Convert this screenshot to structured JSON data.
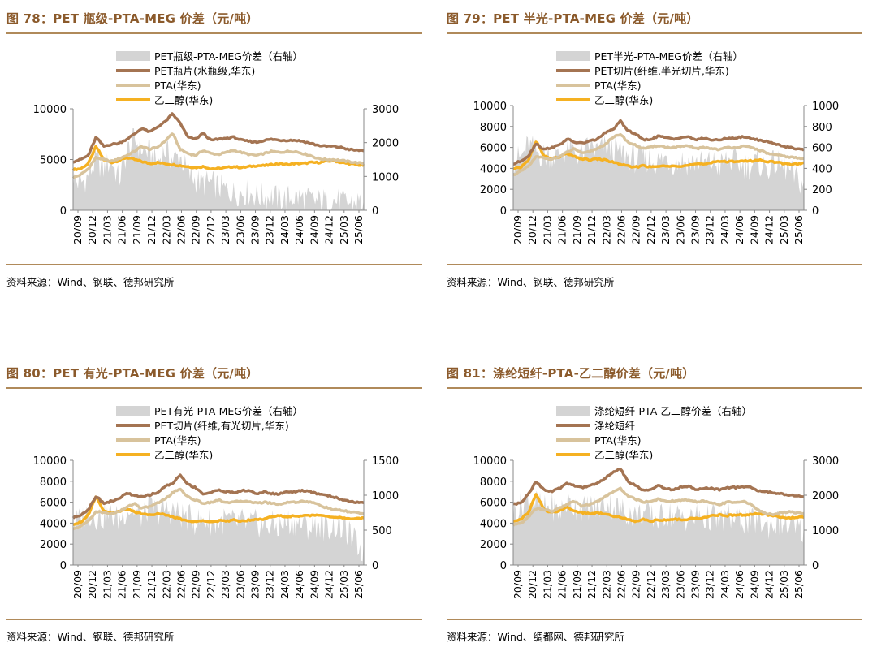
{
  "panels": [
    {
      "title": "图 78：PET 瓶级-PTA-MEG 价差（元/吨）",
      "source": "资料来源：Wind、钢联、德邦研究所",
      "chart_data": {
        "type": "area+line",
        "legend": [
          "PET瓶级-PTA-MEG价差（右轴）",
          "PET瓶片(水瓶级,华东)",
          "PTA(华东)",
          "乙二醇(华东)"
        ],
        "left_axis": {
          "min": 0,
          "max": 10000,
          "ticks": [
            0,
            5000,
            10000
          ]
        },
        "right_axis": {
          "min": 0,
          "max": 3000,
          "ticks": [
            0,
            1000,
            2000,
            3000
          ]
        },
        "x_labels": [
          "20/09",
          "20/12",
          "21/03",
          "21/06",
          "21/09",
          "21/12",
          "22/03",
          "22/06",
          "22/09",
          "22/12",
          "23/03",
          "23/06",
          "23/09",
          "23/12",
          "24/03",
          "24/06",
          "24/09",
          "24/12",
          "25/03",
          "25/06"
        ],
        "series": {
          "spread_right_axis": [
            900,
            800,
            1000,
            1500,
            1200,
            1500,
            900,
            1700,
            2100,
            1800,
            1700,
            1400,
            1800,
            1500,
            1600,
            1100,
            900,
            800,
            800,
            700,
            600,
            500,
            550,
            500,
            450,
            400,
            400,
            350,
            350,
            400,
            350,
            300,
            250,
            300,
            300,
            250,
            200,
            250,
            250
          ],
          "main": [
            4800,
            5000,
            5400,
            7200,
            6300,
            6500,
            6600,
            7000,
            7500,
            8100,
            7700,
            8200,
            8700,
            9500,
            8600,
            7200,
            7000,
            7600,
            6900,
            7000,
            7100,
            7200,
            6900,
            6800,
            6700,
            6900,
            7000,
            6900,
            6900,
            6900,
            6800,
            6600,
            6400,
            6300,
            6300,
            6200,
            6000,
            5900,
            5900
          ],
          "pta": [
            3200,
            3500,
            4100,
            5200,
            5000,
            4800,
            5100,
            5400,
            5800,
            6300,
            6000,
            6200,
            6800,
            7600,
            6000,
            5600,
            5400,
            5900,
            5600,
            5500,
            5700,
            5900,
            5700,
            5500,
            5400,
            5600,
            5800,
            5700,
            5800,
            5800,
            5600,
            5400,
            5100,
            5000,
            5000,
            4900,
            4800,
            4700,
            4600
          ],
          "meg": [
            4000,
            4100,
            4600,
            6300,
            5000,
            4700,
            4900,
            5200,
            5000,
            4800,
            4600,
            4700,
            4600,
            4500,
            4400,
            4300,
            4200,
            4300,
            4100,
            4100,
            4200,
            4300,
            4200,
            4300,
            4400,
            4400,
            4500,
            4600,
            4500,
            4600,
            4600,
            4700,
            4700,
            4800,
            4900,
            4700,
            4600,
            4500,
            4400
          ]
        }
      }
    },
    {
      "title": "图 79：PET 半光-PTA-MEG 价差（元/吨）",
      "source": "资料来源：Wind、钢联、德邦研究所",
      "chart_data": {
        "type": "area+line",
        "legend": [
          "PET半光-PTA-MEG价差（右轴）",
          "PET切片(纤维,半光切片,华东)",
          "PTA(华东)",
          "乙二醇(华东)"
        ],
        "left_axis": {
          "min": 0,
          "max": 10000,
          "ticks": [
            0,
            2000,
            4000,
            6000,
            8000,
            10000
          ]
        },
        "right_axis": {
          "min": 0,
          "max": 1000,
          "ticks": [
            0,
            200,
            400,
            600,
            800,
            1000
          ]
        },
        "x_labels": [
          "20/09",
          "20/12",
          "21/03",
          "21/06",
          "21/09",
          "21/12",
          "22/03",
          "22/06",
          "22/09",
          "22/12",
          "23/03",
          "23/06",
          "23/09",
          "23/12",
          "24/03",
          "24/06",
          "24/09",
          "24/12",
          "25/03",
          "25/06"
        ],
        "series": {
          "spread_right_axis": [
            480,
            500,
            620,
            560,
            520,
            540,
            500,
            580,
            560,
            520,
            620,
            560,
            600,
            580,
            550,
            520,
            480,
            500,
            480,
            460,
            500,
            460,
            480,
            450,
            470,
            440,
            460,
            420,
            480,
            460,
            440,
            420,
            460,
            400,
            440,
            430,
            380,
            300,
            250
          ],
          "main": [
            4400,
            4700,
            5200,
            6400,
            5800,
            6000,
            6200,
            6800,
            6500,
            6400,
            6600,
            6800,
            7400,
            7700,
            8500,
            7600,
            7300,
            6700,
            6800,
            7100,
            6900,
            6800,
            7000,
            7000,
            6700,
            6900,
            6700,
            6700,
            6900,
            6900,
            7000,
            6900,
            6700,
            6600,
            6400,
            6200,
            6000,
            5900,
            5800
          ],
          "pta": [
            3400,
            3700,
            4200,
            5100,
            5000,
            4900,
            5100,
            5500,
            5900,
            5400,
            5600,
            5900,
            6300,
            6900,
            7300,
            6500,
            6200,
            5900,
            6000,
            6200,
            6000,
            6000,
            6100,
            6100,
            5900,
            6000,
            5900,
            5800,
            6000,
            6000,
            6100,
            6000,
            5800,
            5500,
            5300,
            5200,
            5100,
            5000,
            4900
          ],
          "meg": [
            3900,
            4100,
            4800,
            6600,
            5200,
            4900,
            5100,
            5400,
            5100,
            4900,
            4800,
            4900,
            4800,
            4600,
            4400,
            4200,
            4100,
            4300,
            4100,
            4200,
            4200,
            4300,
            4200,
            4300,
            4400,
            4400,
            4600,
            4700,
            4600,
            4700,
            4700,
            4700,
            4800,
            4700,
            4600,
            4500,
            4400,
            4400,
            4500
          ]
        }
      }
    },
    {
      "title": "图 80：PET 有光-PTA-MEG 价差（元/吨）",
      "source": "资料来源：Wind、钢联、德邦研究所",
      "chart_data": {
        "type": "area+line",
        "legend": [
          "PET有光-PTA-MEG价差（右轴）",
          "PET切片(纤维,有光切片,华东)",
          "PTA(华东)",
          "乙二醇(华东)"
        ],
        "left_axis": {
          "min": 0,
          "max": 10000,
          "ticks": [
            0,
            2000,
            4000,
            6000,
            8000,
            10000
          ]
        },
        "right_axis": {
          "min": 0,
          "max": 1500,
          "ticks": [
            0,
            500,
            1000,
            1500
          ]
        },
        "x_labels": [
          "20/09",
          "20/12",
          "21/03",
          "21/06",
          "21/09",
          "21/12",
          "22/03",
          "22/06",
          "22/09",
          "22/12",
          "23/03",
          "23/06",
          "23/09",
          "23/12",
          "24/03",
          "24/06",
          "24/09",
          "24/12",
          "25/03",
          "25/06"
        ],
        "series": {
          "spread_right_axis": [
            600,
            650,
            750,
            700,
            680,
            720,
            650,
            800,
            780,
            700,
            850,
            750,
            800,
            780,
            720,
            680,
            620,
            650,
            620,
            600,
            650,
            600,
            620,
            580,
            600,
            560,
            580,
            540,
            620,
            600,
            580,
            540,
            600,
            520,
            560,
            540,
            450,
            300,
            200
          ],
          "main": [
            4500,
            4800,
            5300,
            6600,
            5900,
            6100,
            6300,
            6900,
            6600,
            6500,
            6700,
            6900,
            7500,
            7800,
            8600,
            7700,
            7400,
            6800,
            6900,
            7200,
            7000,
            6900,
            7100,
            7100,
            6800,
            7000,
            6800,
            6800,
            7000,
            7000,
            7100,
            7000,
            6800,
            6700,
            6500,
            6300,
            6100,
            6000,
            5900
          ],
          "pta": [
            3400,
            3700,
            4200,
            5100,
            5000,
            4900,
            5100,
            5500,
            5900,
            5400,
            5600,
            5900,
            6300,
            6900,
            7300,
            6500,
            6200,
            5900,
            6000,
            6200,
            6000,
            6000,
            6100,
            6100,
            5900,
            6000,
            5900,
            5800,
            6000,
            6000,
            6100,
            6000,
            5800,
            5500,
            5300,
            5200,
            5100,
            5000,
            4900
          ],
          "meg": [
            3900,
            4100,
            4800,
            6600,
            5200,
            4900,
            5100,
            5400,
            5100,
            4900,
            4800,
            4900,
            4800,
            4600,
            4400,
            4200,
            4100,
            4300,
            4100,
            4200,
            4200,
            4300,
            4200,
            4300,
            4400,
            4400,
            4600,
            4700,
            4600,
            4700,
            4700,
            4700,
            4800,
            4700,
            4600,
            4500,
            4400,
            4400,
            4500
          ]
        }
      }
    },
    {
      "title": "图 81：涤纶短纤-PTA-乙二醇价差（元/吨）",
      "source": "资料来源：Wind、绸都网、德邦研究所",
      "chart_data": {
        "type": "area+line",
        "legend": [
          "涤纶短纤-PTA-乙二醇价差（右轴）",
          "涤纶短纤",
          "PTA(华东)",
          "乙二醇(华东)"
        ],
        "left_axis": {
          "min": 0,
          "max": 10000,
          "ticks": [
            0,
            2000,
            4000,
            6000,
            8000,
            10000
          ]
        },
        "right_axis": {
          "min": 0,
          "max": 3000,
          "ticks": [
            0,
            1000,
            2000,
            3000
          ]
        },
        "x_labels": [
          "20/09",
          "20/12",
          "21/03",
          "21/06",
          "21/09",
          "21/12",
          "22/03",
          "22/06",
          "22/09",
          "22/12",
          "23/03",
          "23/06",
          "23/09",
          "23/12",
          "24/03",
          "24/06",
          "24/09",
          "24/12",
          "25/03",
          "25/06"
        ],
        "series": {
          "spread_right_axis": [
            1500,
            1700,
            1900,
            1800,
            1600,
            1700,
            1500,
            1800,
            1700,
            1600,
            1700,
            1600,
            1800,
            1700,
            1600,
            1500,
            1400,
            1500,
            1400,
            1300,
            1500,
            1400,
            1400,
            1300,
            1400,
            1300,
            1400,
            1200,
            1400,
            1300,
            1300,
            1200,
            1300,
            1100,
            1200,
            1200,
            1100,
            1000,
            1000
          ],
          "main": [
            5800,
            5900,
            6800,
            8000,
            7200,
            7000,
            7300,
            7800,
            7600,
            7400,
            7600,
            7800,
            8300,
            8800,
            9200,
            8000,
            7600,
            7100,
            7200,
            7600,
            7300,
            7200,
            7500,
            7500,
            7200,
            7400,
            7300,
            7200,
            7400,
            7400,
            7500,
            7400,
            7100,
            7000,
            6900,
            6800,
            6700,
            6600,
            6500
          ],
          "pta": [
            3800,
            4000,
            4600,
            5400,
            5300,
            5100,
            5400,
            5800,
            6100,
            5600,
            5800,
            6100,
            6500,
            7000,
            7300,
            6600,
            6300,
            6000,
            6100,
            6300,
            6100,
            6100,
            6200,
            6200,
            6000,
            6100,
            5900,
            5800,
            6000,
            6000,
            6100,
            5800,
            5300,
            4900,
            4800,
            5000,
            5100,
            5000,
            4900
          ],
          "meg": [
            4200,
            4400,
            5000,
            6800,
            5300,
            5000,
            5200,
            5500,
            5200,
            5000,
            4900,
            5000,
            4900,
            4700,
            4600,
            4300,
            4200,
            4400,
            4200,
            4300,
            4300,
            4400,
            4300,
            4400,
            4500,
            4500,
            4700,
            4800,
            4700,
            4800,
            4800,
            4800,
            4900,
            4800,
            4700,
            4600,
            4500,
            4500,
            4600
          ]
        }
      }
    }
  ],
  "colors": {
    "main": "#a47452",
    "pta": "#d8c39c",
    "meg": "#f5b122",
    "spread": "#d4d4d4",
    "title": "#8b5a2b",
    "rule": "#b08a5a"
  }
}
